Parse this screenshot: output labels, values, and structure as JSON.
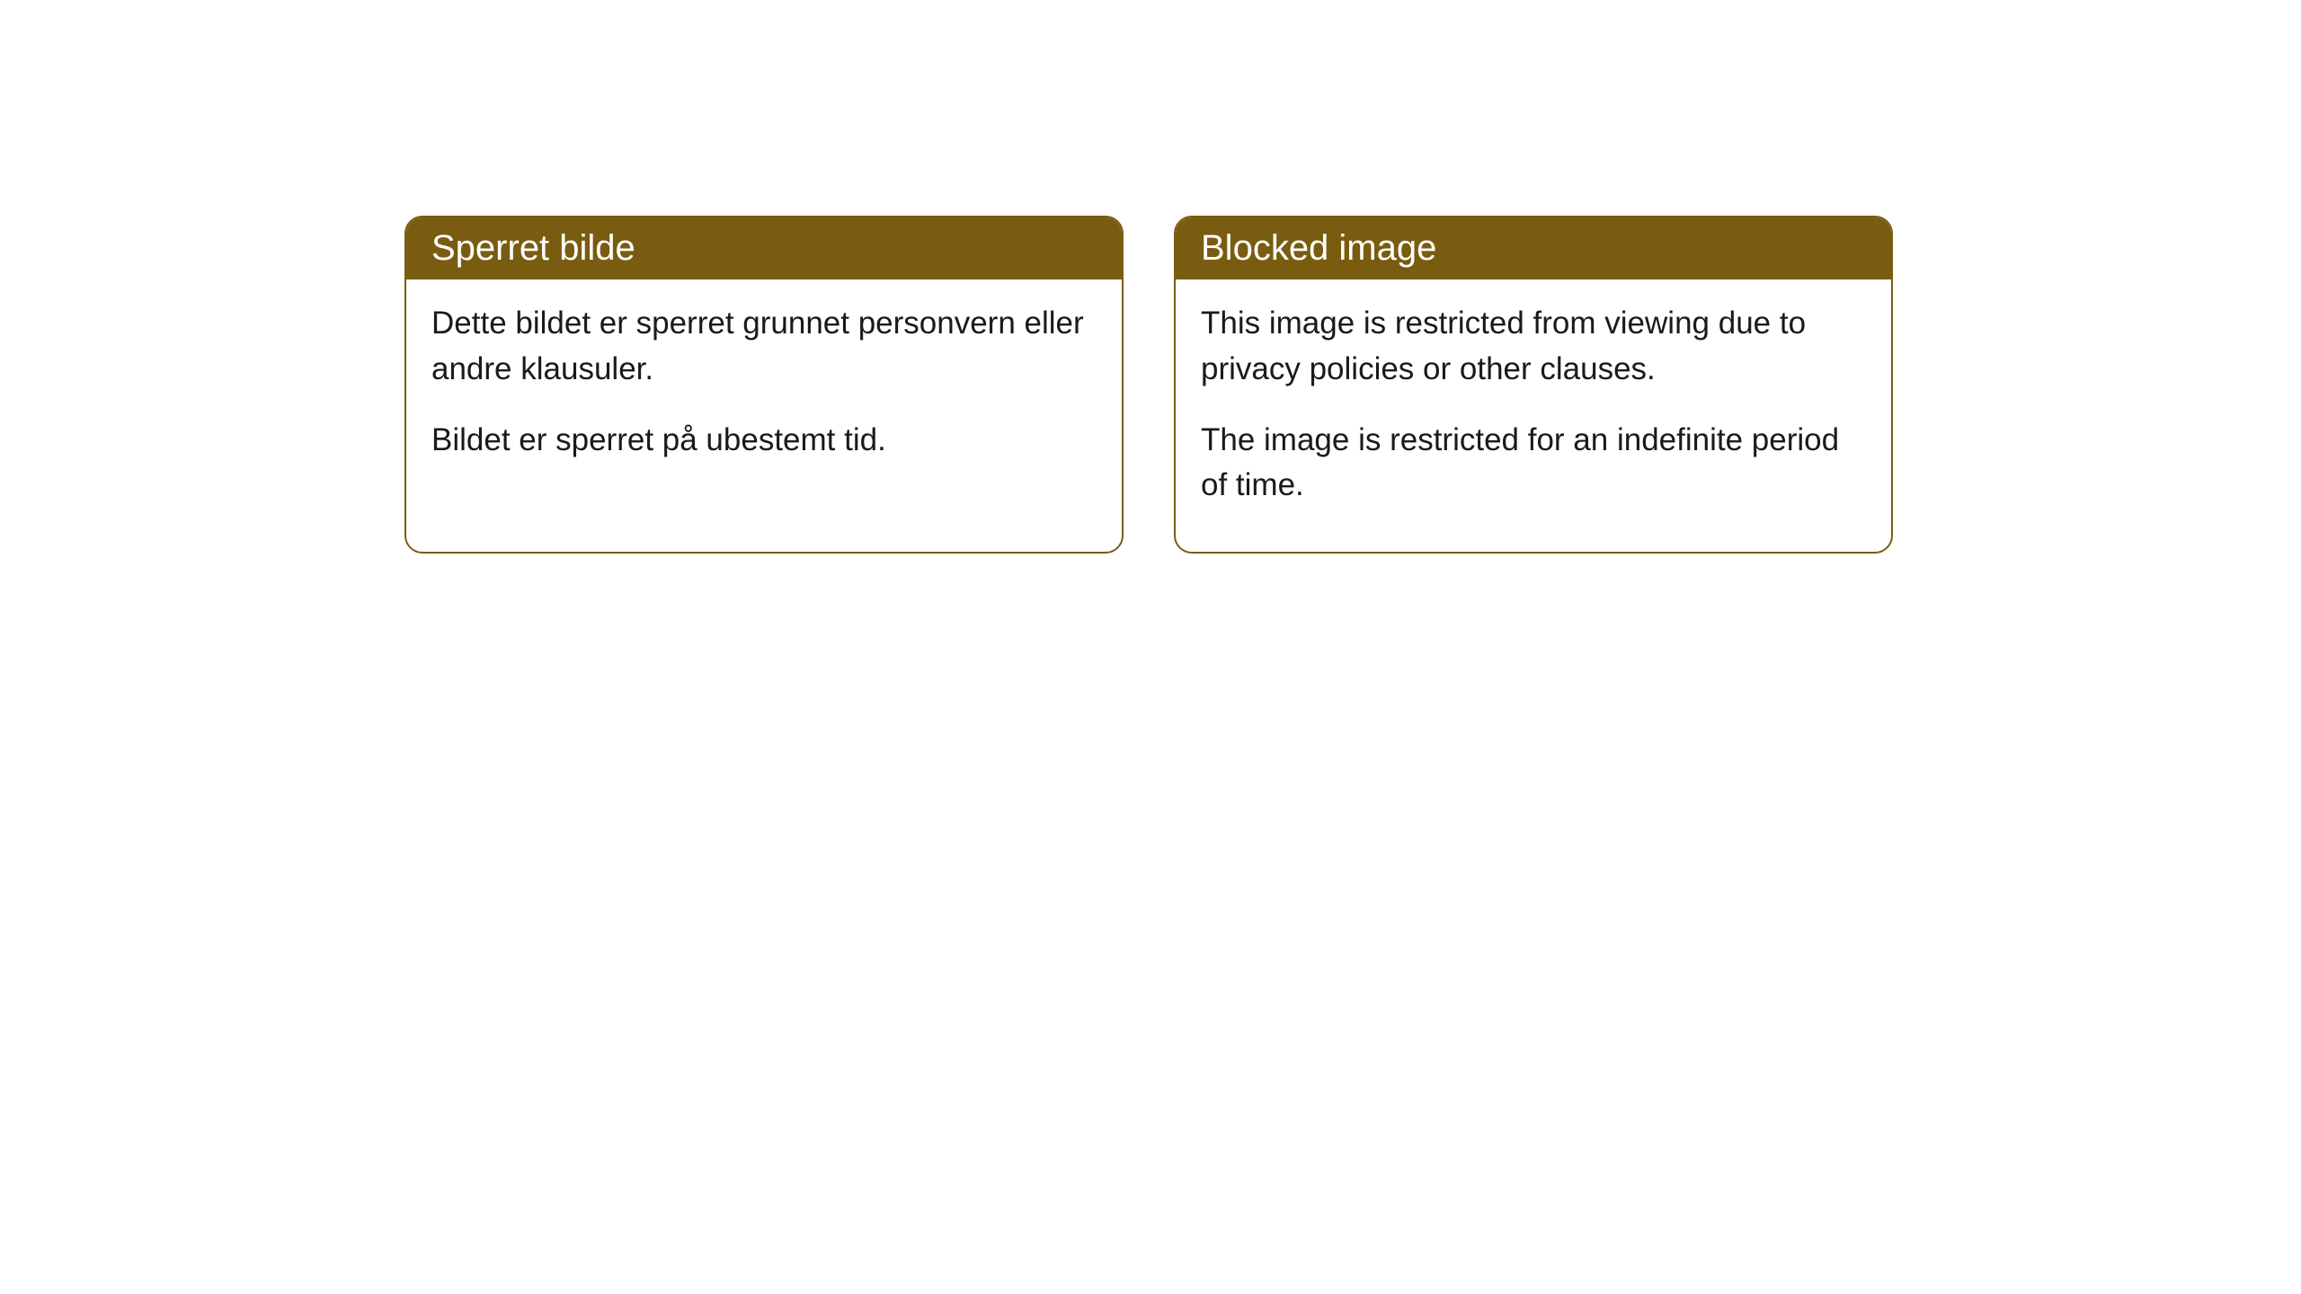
{
  "cards": [
    {
      "title": "Sperret bilde",
      "paragraph1": "Dette bildet er sperret grunnet personvern eller andre klausuler.",
      "paragraph2": "Bildet er sperret på ubestemt tid."
    },
    {
      "title": "Blocked image",
      "paragraph1": "This image is restricted from viewing due to privacy policies or other clauses.",
      "paragraph2": "The image is restricted for an indefinite period of time."
    }
  ],
  "styling": {
    "header_background": "#7a5c10",
    "header_text_color": "#ffffff",
    "border_color": "#7a5c10",
    "body_background": "#ffffff",
    "body_text_color": "#1a1a1a",
    "border_radius": 20,
    "title_fontsize": 40,
    "body_fontsize": 35
  }
}
